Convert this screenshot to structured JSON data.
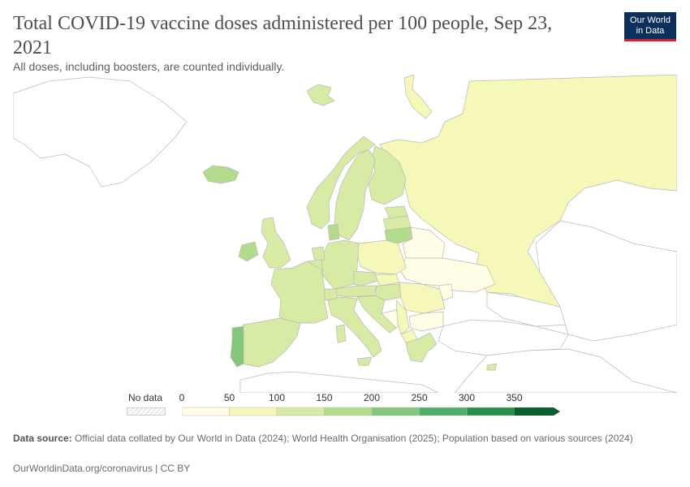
{
  "header": {
    "title": "Total COVID-19 vaccine doses administered per 100 people, Sep 23, 2021",
    "subtitle": "All doses, including boosters, are counted individually.",
    "logo_line1": "Our World",
    "logo_line2": "in Data"
  },
  "legend": {
    "no_data_label": "No data",
    "ticks": [
      "0",
      "50",
      "100",
      "150",
      "200",
      "250",
      "300",
      "350"
    ],
    "colors": [
      "#fffde6",
      "#f5f8b8",
      "#d8eba4",
      "#b2dc8c",
      "#82c77b",
      "#4faf66",
      "#2a8e4b",
      "#0d5f31"
    ],
    "no_data_color": "#e8e8e8"
  },
  "footer": {
    "source_label": "Data source:",
    "source_text": "Official data collated by Our World in Data (2024); World Health Organisation (2025); Population based on various sources (2024)",
    "link": "OurWorldinData.org/coronavirus | CC BY"
  },
  "colors": {
    "land_none": "#ffffff",
    "border": "#b9b9b9",
    "bin0": "#fffde6",
    "bin1": "#f5f8b8",
    "bin2": "#d8eba4",
    "bin3": "#b2dc8c",
    "bin4": "#82c77b"
  }
}
